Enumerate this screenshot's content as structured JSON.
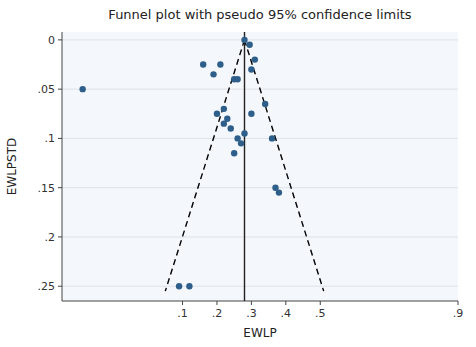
{
  "chart_data": {
    "type": "scatter",
    "title": "Funnel plot with pseudo 95% confidence limits",
    "xlabel": "EWLP",
    "ylabel": "EWLPSTD",
    "xlim": [
      -0.25,
      0.9
    ],
    "ylim": [
      0.265,
      -0.008
    ],
    "xticks": [
      {
        "value": 0.1,
        "label": ".1"
      },
      {
        "value": 0.2,
        "label": ".2"
      },
      {
        "value": 0.3,
        "label": ".3"
      },
      {
        "value": 0.4,
        "label": ".4"
      },
      {
        "value": 0.5,
        "label": ".5"
      },
      {
        "value": 0.9,
        "label": ".9"
      }
    ],
    "yticks": [
      0,
      {
        "value": 0.05,
        "label": ".05"
      },
      {
        "value": 0.1,
        "label": ".1"
      },
      {
        "value": 0.15,
        "label": ".15"
      },
      {
        "value": 0.2,
        "label": ".2"
      },
      {
        "value": 0.25,
        "label": ".25"
      }
    ],
    "grid": true,
    "effect_line_x": 0.28,
    "series": [
      {
        "type": "scatter",
        "color": "#2e5f8a",
        "x": [
          -0.19,
          0.16,
          0.19,
          0.21,
          0.25,
          0.26,
          0.22,
          0.2,
          0.23,
          0.22,
          0.24,
          0.26,
          0.27,
          0.25,
          0.28,
          0.295,
          0.31,
          0.3,
          0.36,
          0.37,
          0.38,
          0.28,
          0.3,
          0.34,
          0.09,
          0.12
        ],
        "values": [
          0.05,
          0.025,
          0.035,
          0.025,
          0.04,
          0.04,
          0.07,
          0.075,
          0.08,
          0.085,
          0.09,
          0.1,
          0.105,
          0.115,
          0.095,
          0.005,
          0.02,
          0.075,
          0.1,
          0.15,
          0.155,
          0.0,
          0.03,
          0.065,
          0.25,
          0.25
        ]
      },
      {
        "type": "line",
        "line_style": "dashed",
        "color": "black",
        "x": [
          0.28,
          0.05
        ],
        "values": [
          0.0,
          0.255
        ]
      },
      {
        "type": "line",
        "line_style": "dashed",
        "color": "black",
        "x": [
          0.28,
          0.51
        ],
        "values": [
          0.0,
          0.255
        ]
      }
    ]
  }
}
